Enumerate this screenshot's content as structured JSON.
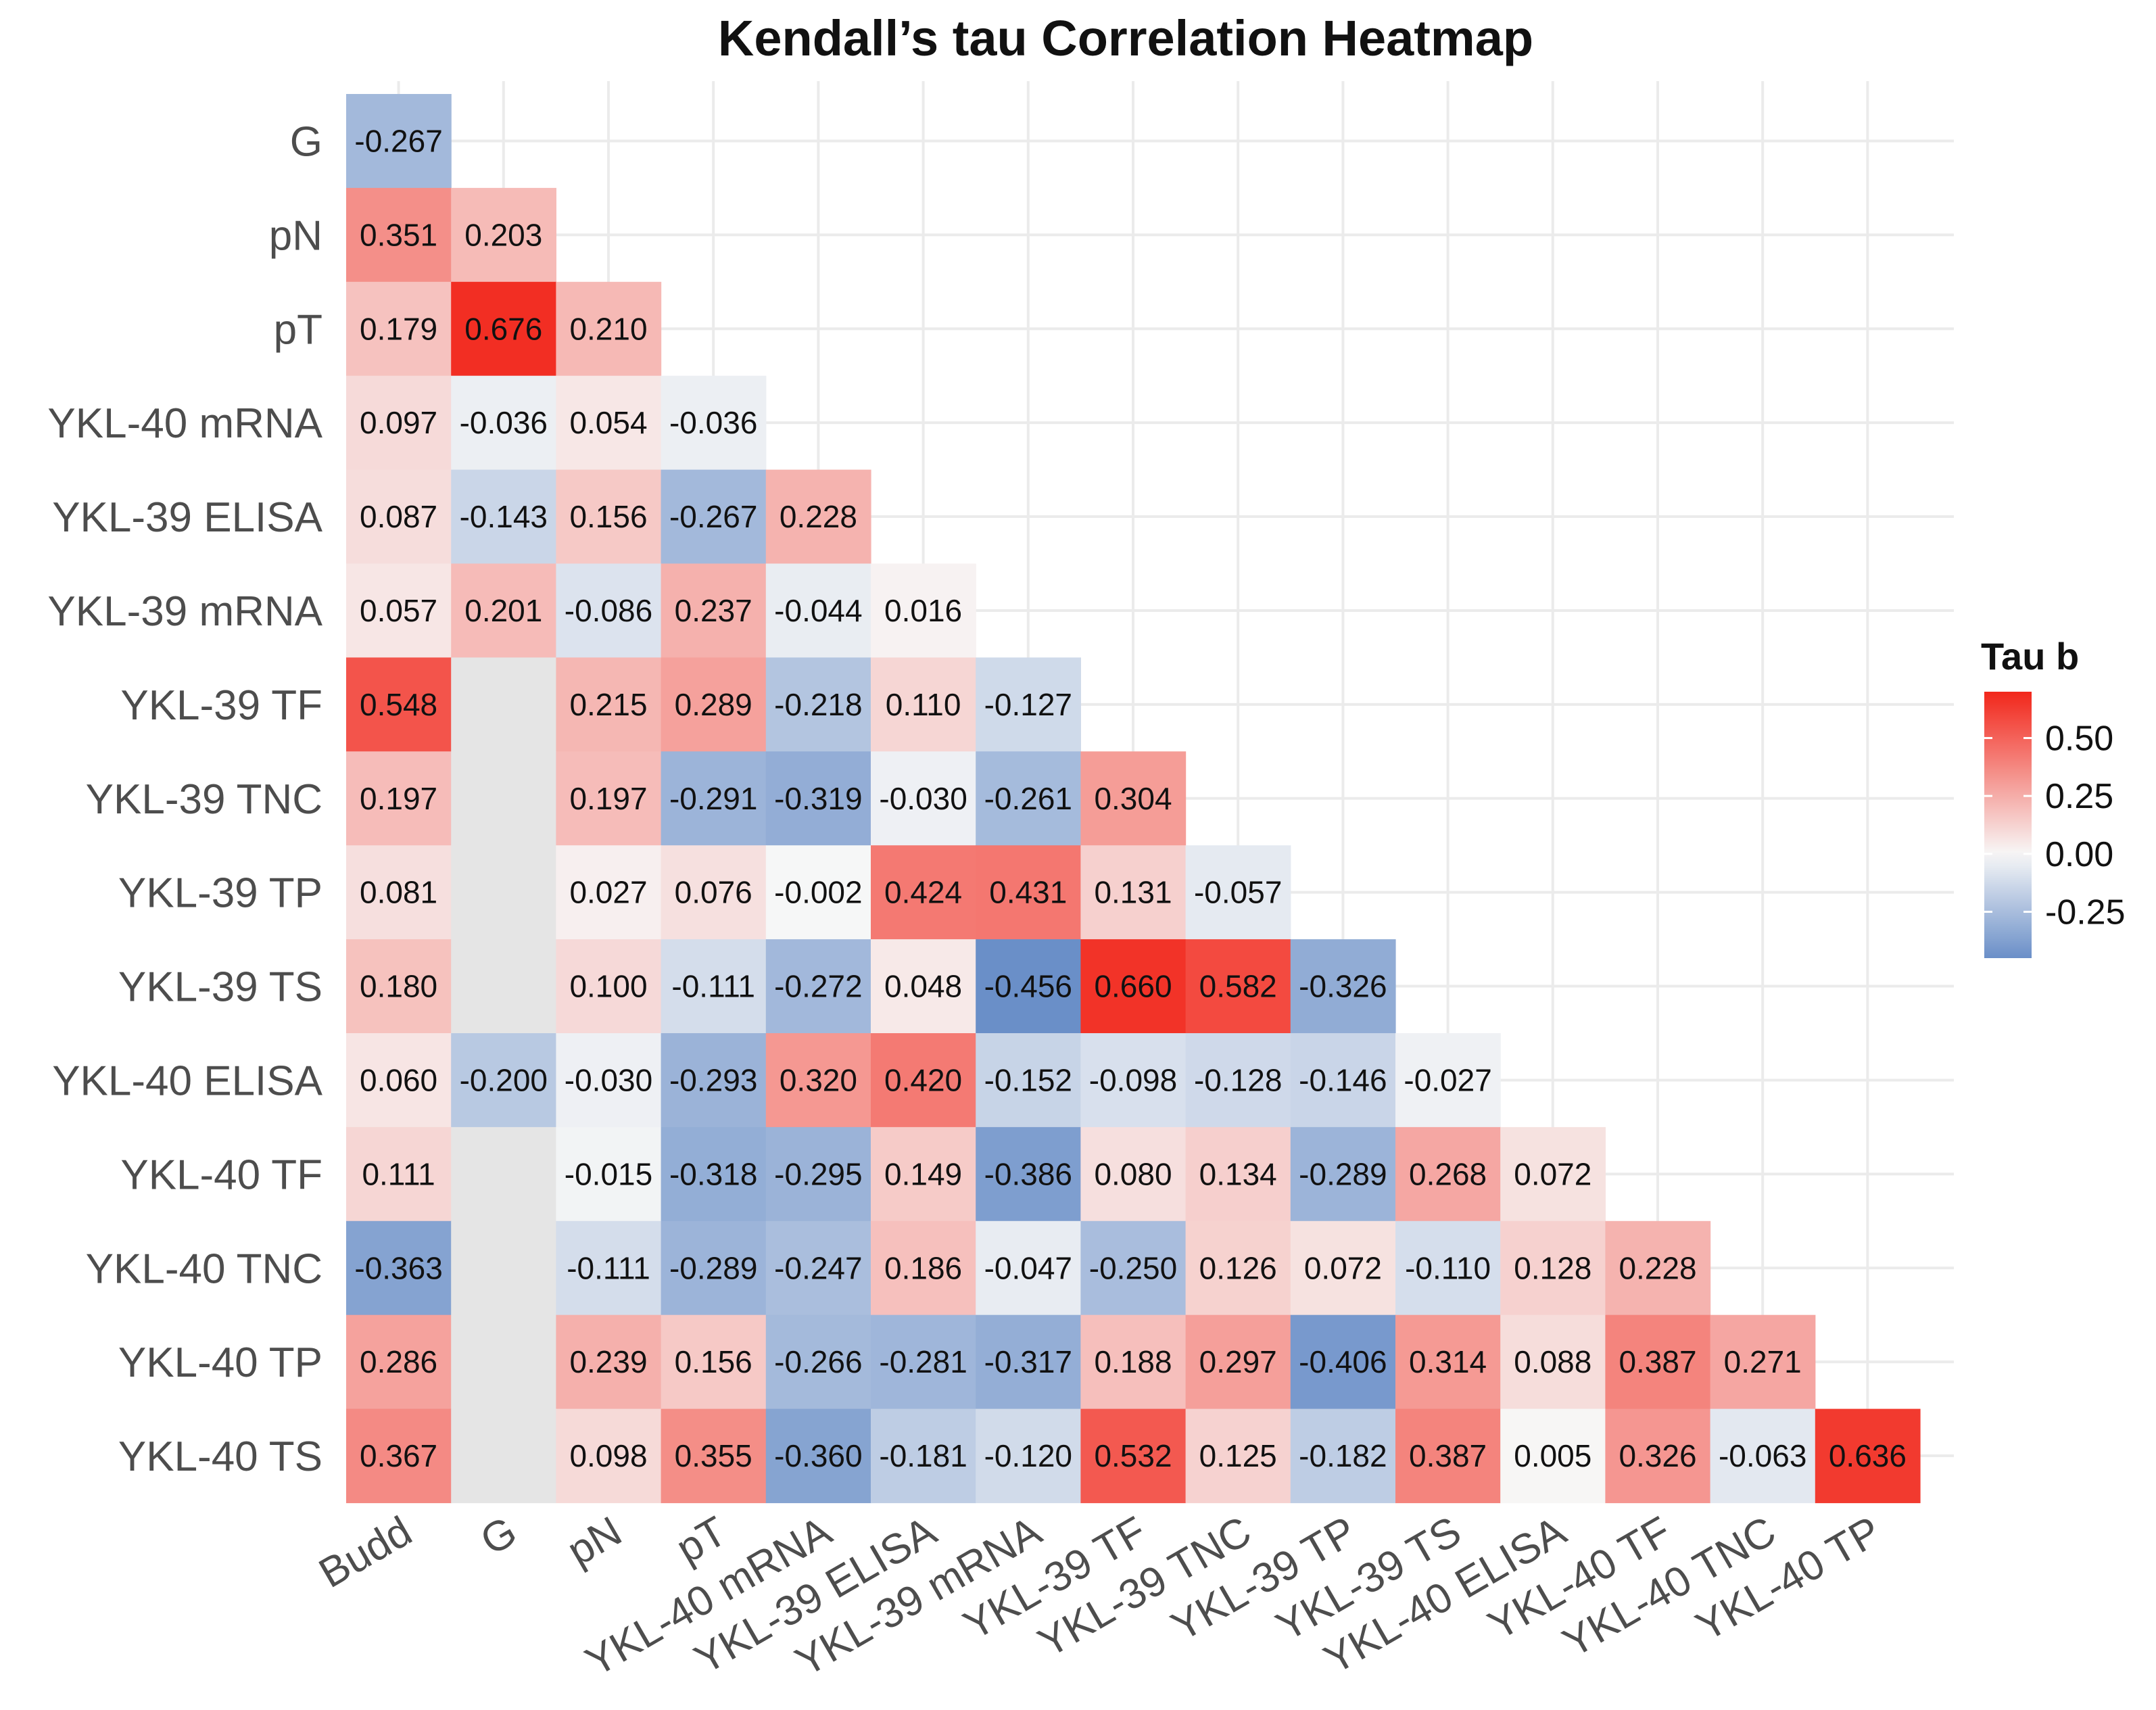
{
  "chart_data": {
    "type": "heatmap",
    "title": "Kendall’s tau Correlation Heatmap",
    "xlabel": "",
    "ylabel": "",
    "x_categories": [
      "Budd",
      "G",
      "pN",
      "pT",
      "YKL-40 mRNA",
      "YKL-39 ELISA",
      "YKL-39 mRNA",
      "YKL-39 TF",
      "YKL-39 TNC",
      "YKL-39 TP",
      "YKL-39 TS",
      "YKL-40 ELISA",
      "YKL-40 TF",
      "YKL-40 TNC",
      "YKL-40 TP"
    ],
    "y_categories": [
      "G",
      "pN",
      "pT",
      "YKL-40 mRNA",
      "YKL-39 ELISA",
      "YKL-39 mRNA",
      "YKL-39 TF",
      "YKL-39 TNC",
      "YKL-39 TP",
      "YKL-39 TS",
      "YKL-40 ELISA",
      "YKL-40 TF",
      "YKL-40 TNC",
      "YKL-40 TP",
      "YKL-40 TS"
    ],
    "values": [
      [
        -0.267
      ],
      [
        0.351,
        0.203
      ],
      [
        0.179,
        0.676,
        0.21
      ],
      [
        0.097,
        -0.036,
        0.054,
        -0.036
      ],
      [
        0.087,
        -0.143,
        0.156,
        -0.267,
        0.228
      ],
      [
        0.057,
        0.201,
        -0.086,
        0.237,
        -0.044,
        0.016
      ],
      [
        0.548,
        null,
        0.215,
        0.289,
        -0.218,
        0.11,
        -0.127
      ],
      [
        0.197,
        null,
        0.197,
        -0.291,
        -0.319,
        -0.03,
        -0.261,
        0.304
      ],
      [
        0.081,
        null,
        0.027,
        0.076,
        -0.002,
        0.424,
        0.431,
        0.131,
        -0.057
      ],
      [
        0.18,
        null,
        0.1,
        -0.111,
        -0.272,
        0.048,
        -0.456,
        0.66,
        0.582,
        -0.326
      ],
      [
        0.06,
        -0.2,
        -0.03,
        -0.293,
        0.32,
        0.42,
        -0.152,
        -0.098,
        -0.128,
        -0.146,
        -0.027
      ],
      [
        0.111,
        null,
        -0.015,
        -0.318,
        -0.295,
        0.149,
        -0.386,
        0.08,
        0.134,
        -0.289,
        0.268,
        0.072
      ],
      [
        -0.363,
        null,
        -0.111,
        -0.289,
        -0.247,
        0.186,
        -0.047,
        -0.25,
        0.126,
        0.072,
        -0.11,
        0.128,
        0.228
      ],
      [
        0.286,
        null,
        0.239,
        0.156,
        -0.266,
        -0.281,
        -0.317,
        0.188,
        0.297,
        -0.406,
        0.314,
        0.088,
        0.387,
        0.271
      ],
      [
        0.367,
        null,
        0.098,
        0.355,
        -0.36,
        -0.181,
        -0.12,
        0.532,
        0.125,
        -0.182,
        0.387,
        0.005,
        0.326,
        -0.063,
        0.636
      ]
    ],
    "value_format": "3 decimals",
    "missing_color": "#e5e5e5",
    "colorscale": {
      "low": "#6a8fc8",
      "mid": "#f7f7f7",
      "high": "#f2271b",
      "low_value": -0.45,
      "mid_value": 0.0,
      "high_value": 0.7
    },
    "grid": true,
    "legend": {
      "title": "Tau b",
      "placement": "right",
      "ticks": [
        0.5,
        0.25,
        0.0,
        -0.25
      ],
      "tick_labels": [
        "0.50",
        "0.25",
        "0.00",
        "-0.25"
      ],
      "range": [
        -0.45,
        0.7
      ]
    }
  }
}
